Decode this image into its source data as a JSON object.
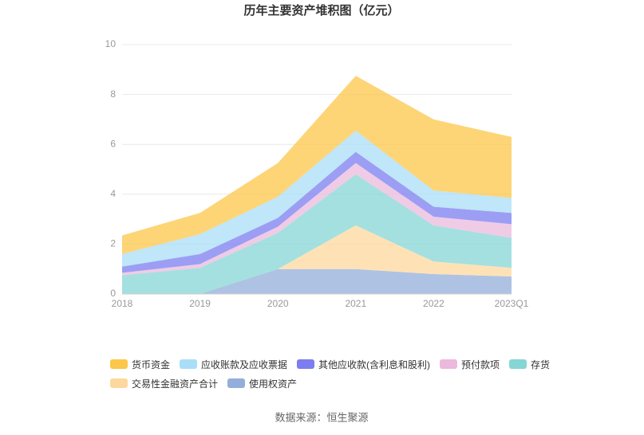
{
  "chart_data": {
    "type": "stacked_area",
    "title": "历年主要资产堆积图（亿元）",
    "categories": [
      "2018",
      "2019",
      "2020",
      "2021",
      "2022",
      "2023Q1"
    ],
    "ylim": [
      0,
      10
    ],
    "yticks": [
      0,
      2,
      4,
      6,
      8,
      10
    ],
    "grid": true,
    "series": [
      {
        "name": "货币资金",
        "color": "#fcc74a",
        "values": [
          0.75,
          0.85,
          1.35,
          2.2,
          2.85,
          2.45
        ]
      },
      {
        "name": "应收账款及应收票据",
        "color": "#a9def7",
        "values": [
          0.5,
          0.8,
          0.85,
          0.85,
          0.65,
          0.6
        ]
      },
      {
        "name": "其他应收款(含利息和股利)",
        "color": "#7b7ef0",
        "values": [
          0.25,
          0.4,
          0.35,
          0.45,
          0.4,
          0.45
        ]
      },
      {
        "name": "预付款项",
        "color": "#ebb9dd",
        "values": [
          0.1,
          0.15,
          0.25,
          0.45,
          0.35,
          0.55
        ]
      },
      {
        "name": "存货",
        "color": "#86d6d6",
        "values": [
          0.75,
          1.05,
          1.45,
          2.05,
          1.45,
          1.2
        ]
      },
      {
        "name": "交易性金融资产合计",
        "color": "#fdd89e",
        "values": [
          0,
          0,
          0,
          1.75,
          0.5,
          0.35
        ]
      },
      {
        "name": "使用权资产",
        "color": "#93aedb",
        "values": [
          0,
          0,
          1.0,
          1.0,
          0.8,
          0.7
        ]
      }
    ],
    "source": "数据来源：恒生聚源"
  }
}
